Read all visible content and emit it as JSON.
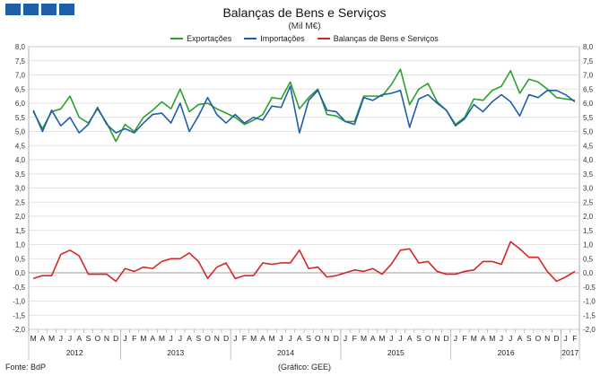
{
  "chart_data": {
    "type": "line",
    "title": "Balanças de Bens e Serviços",
    "subtitle": "(Mil M€)",
    "ylim": [
      -2.0,
      8.0
    ],
    "yticks": [
      "8,0",
      "7,5",
      "7,0",
      "6,5",
      "6,0",
      "5,5",
      "5,0",
      "4,5",
      "4,0",
      "3,5",
      "3,0",
      "2,5",
      "2,0",
      "1,5",
      "1,0",
      "0,5",
      "0,0",
      "-0,5",
      "-1,0",
      "-1,5",
      "-2,0"
    ],
    "months": [
      "M",
      "A",
      "M",
      "J",
      "J",
      "A",
      "S",
      "O",
      "N",
      "D",
      "J",
      "F",
      "M",
      "A",
      "M",
      "J",
      "J",
      "A",
      "S",
      "O",
      "N",
      "D",
      "J",
      "F",
      "M",
      "A",
      "M",
      "J",
      "J",
      "A",
      "S",
      "O",
      "N",
      "D",
      "J",
      "F",
      "M",
      "A",
      "M",
      "J",
      "J",
      "A",
      "S",
      "O",
      "N",
      "D",
      "J",
      "F",
      "M",
      "A",
      "M",
      "J",
      "J",
      "A",
      "S",
      "O",
      "N",
      "D",
      "J",
      "F"
    ],
    "years": [
      {
        "label": "2012",
        "start": 0,
        "end": 9
      },
      {
        "label": "2013",
        "start": 10,
        "end": 21
      },
      {
        "label": "2014",
        "start": 22,
        "end": 33
      },
      {
        "label": "2015",
        "start": 34,
        "end": 45
      },
      {
        "label": "2016",
        "start": 46,
        "end": 57
      },
      {
        "label": "2017",
        "start": 58,
        "end": 59
      }
    ],
    "grid": true,
    "legend_position": "top",
    "series": [
      {
        "name": "Exportações",
        "color": "#2ca02c",
        "values": [
          5.7,
          5.1,
          5.7,
          5.8,
          6.25,
          5.5,
          5.3,
          5.8,
          5.3,
          4.65,
          5.25,
          5.0,
          5.5,
          5.75,
          6.05,
          5.8,
          6.5,
          5.7,
          5.95,
          6.0,
          5.8,
          5.65,
          5.5,
          5.25,
          5.4,
          5.6,
          6.2,
          6.15,
          6.75,
          5.8,
          6.2,
          6.5,
          5.6,
          5.55,
          5.35,
          5.35,
          6.25,
          6.25,
          6.25,
          6.65,
          7.2,
          5.95,
          6.5,
          6.7,
          6.05,
          5.75,
          5.25,
          5.5,
          6.15,
          6.1,
          6.45,
          6.6,
          7.15,
          6.35,
          6.85,
          6.75,
          6.5,
          6.2,
          6.15,
          6.1
        ]
      },
      {
        "name": "Importações",
        "color": "#1f5fa8",
        "values": [
          5.75,
          5.0,
          5.75,
          5.2,
          5.5,
          4.95,
          5.25,
          5.85,
          5.25,
          4.95,
          5.1,
          4.95,
          5.3,
          5.6,
          5.65,
          5.3,
          6.0,
          5.0,
          5.55,
          6.2,
          5.6,
          5.3,
          5.6,
          5.3,
          5.5,
          5.4,
          5.9,
          5.85,
          6.6,
          4.95,
          6.1,
          6.45,
          5.75,
          5.7,
          5.35,
          5.25,
          6.2,
          6.1,
          6.3,
          6.35,
          6.45,
          5.15,
          6.15,
          6.3,
          6.0,
          5.75,
          5.2,
          5.45,
          5.95,
          5.7,
          6.05,
          6.3,
          6.05,
          5.55,
          6.3,
          6.2,
          6.45,
          6.45,
          6.3,
          6.05
        ]
      },
      {
        "name": "Balanças de Bens e Serviços",
        "color": "#d62728",
        "values": [
          -0.2,
          -0.1,
          -0.1,
          0.65,
          0.8,
          0.6,
          -0.05,
          -0.05,
          -0.05,
          -0.3,
          0.15,
          0.05,
          0.2,
          0.15,
          0.4,
          0.5,
          0.5,
          0.7,
          0.4,
          -0.2,
          0.2,
          0.35,
          -0.2,
          -0.1,
          -0.1,
          0.35,
          0.3,
          0.35,
          0.35,
          0.8,
          0.15,
          0.2,
          -0.15,
          -0.1,
          0.0,
          0.1,
          0.05,
          0.15,
          -0.05,
          0.3,
          0.8,
          0.85,
          0.35,
          0.4,
          0.05,
          -0.05,
          -0.05,
          0.05,
          0.1,
          0.4,
          0.4,
          0.3,
          1.1,
          0.85,
          0.55,
          0.55,
          0.05,
          -0.3,
          -0.15,
          0.05
        ]
      }
    ]
  },
  "source_label": "Fonte: BdP",
  "credit_label": "(Gráfico: GEE)"
}
